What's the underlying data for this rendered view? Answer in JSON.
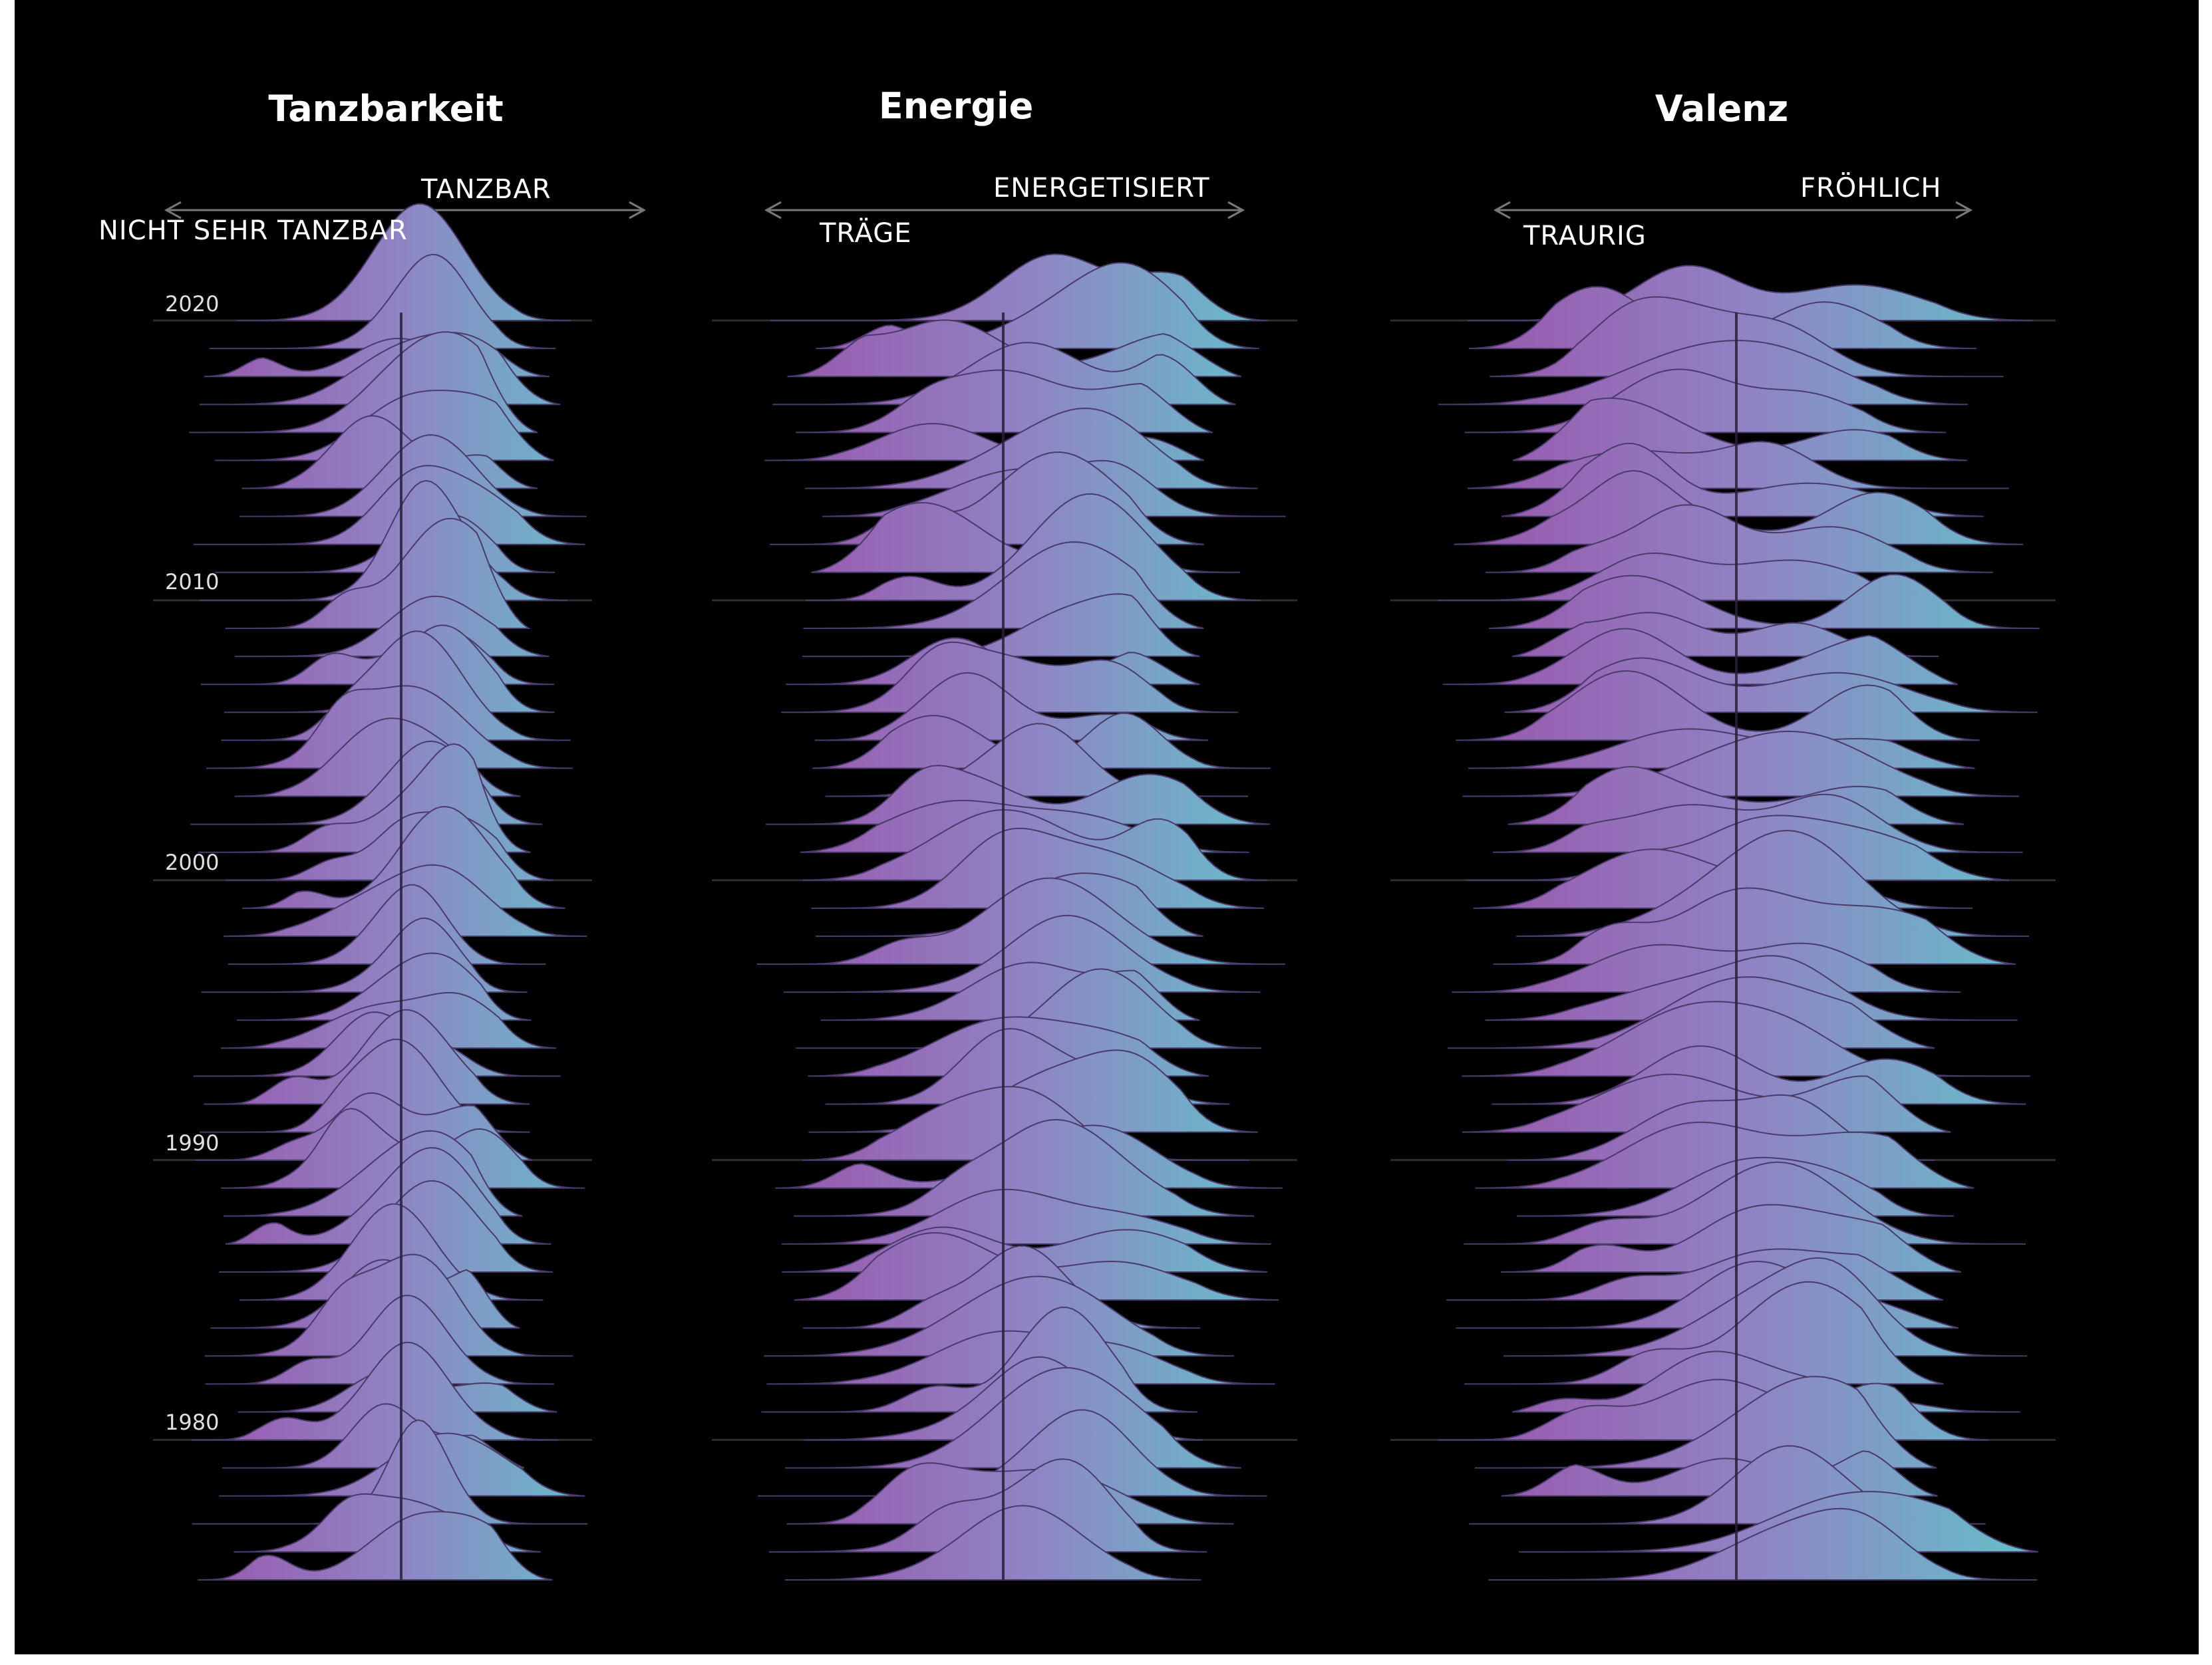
{
  "chart_data": {
    "type": "ridgeline",
    "title": "",
    "years": [
      "2020",
      "2010",
      "2000",
      "1990",
      "1980"
    ],
    "panels": [
      {
        "title": "Tanzbarkeit",
        "low_label": "NICHT SEHR TANZBAR",
        "high_label": "TANZBAR"
      },
      {
        "title": "Energie",
        "low_label": "TRÄGE",
        "high_label": "ENERGETISIERT"
      },
      {
        "title": "Valenz",
        "low_label": "TRAURIG",
        "high_label": "FRÖHLICH"
      }
    ],
    "gradient": {
      "low_color": "#9b4fa8",
      "mid_color": "#8f84c4",
      "high_color": "#5fc7c9"
    },
    "background": "#000000"
  }
}
